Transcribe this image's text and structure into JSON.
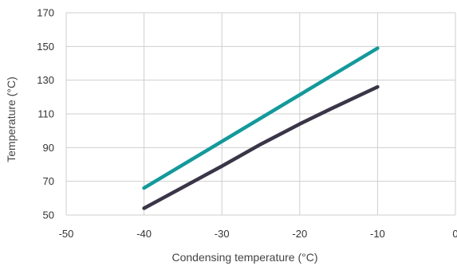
{
  "chart_data": {
    "type": "line",
    "title": "",
    "xlabel": "Condensing temperature (°C)",
    "ylabel": "Temperature (°C)",
    "xlim": [
      -50,
      0
    ],
    "ylim": [
      50,
      170
    ],
    "xticks": [
      -50,
      -40,
      -30,
      -20,
      -10,
      0
    ],
    "xtick_labels": [
      "-50",
      "-40",
      "-30",
      "-20",
      "-10",
      "0"
    ],
    "yticks": [
      50,
      70,
      90,
      110,
      130,
      150,
      170
    ],
    "ytick_labels": [
      "50",
      "70",
      "90",
      "110",
      "130",
      "150",
      "170"
    ],
    "grid": true,
    "legend": "none",
    "series": [
      {
        "color": "#14999b",
        "x": [
          -40,
          -10
        ],
        "y": [
          66,
          149
        ]
      },
      {
        "color": "#3a3547",
        "x": [
          -40,
          -30,
          -25,
          -20,
          -16,
          -10
        ],
        "y": [
          54,
          79,
          92,
          104,
          113,
          126
        ]
      }
    ]
  }
}
